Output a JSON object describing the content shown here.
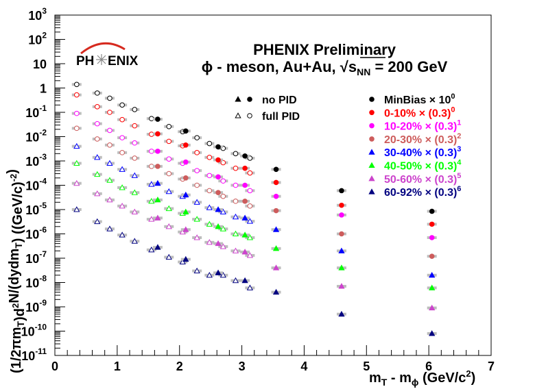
{
  "chart_data": {
    "type": "scatter",
    "title": "PHENIX Preliminary",
    "subtitle_prefix": "ϕ - meson, Au+Au, ",
    "subtitle_sqrt_symbol": "√",
    "subtitle_s": "s",
    "subtitle_s_sub": "NN",
    "subtitle_suffix": " = 200 GeV",
    "logo_text_left": "PH",
    "logo_text_right": "ENIX",
    "xlabel_main": "m",
    "xlabel_sub_T": "T",
    "xlabel_mid": " - m",
    "xlabel_sub_phi": "ϕ",
    "xlabel_unit": " (GeV/c",
    "xlabel_unit_sup": "2",
    "xlabel_end": ")",
    "ylabel_parts": [
      {
        "t": "(1/2πm"
      },
      {
        "t": "T",
        "sub": true
      },
      {
        "t": ")d"
      },
      {
        "t": "2",
        "sup": true
      },
      {
        "t": "N/(dydm"
      },
      {
        "t": "T",
        "sub": true
      },
      {
        "t": ") ((GeV/c)"
      },
      {
        "t": "-2",
        "sup": true
      },
      {
        "t": ")"
      }
    ],
    "x_range": [
      0,
      7
    ],
    "y_log": true,
    "y_range_exp": [
      -11,
      3
    ],
    "x_ticks": [
      "0",
      "1",
      "2",
      "3",
      "4",
      "5",
      "6",
      "7"
    ],
    "y_ticks": [
      {
        "exp": -11,
        "label": "10",
        "sup": "-11"
      },
      {
        "exp": -10,
        "label": "10",
        "sup": "-10"
      },
      {
        "exp": -9,
        "label": "10",
        "sup": "-9"
      },
      {
        "exp": -8,
        "label": "10",
        "sup": "-8"
      },
      {
        "exp": -7,
        "label": "10",
        "sup": "-7"
      },
      {
        "exp": -6,
        "label": "10",
        "sup": "-6"
      },
      {
        "exp": -5,
        "label": "10",
        "sup": "-5"
      },
      {
        "exp": -4,
        "label": "10",
        "sup": "-4"
      },
      {
        "exp": -3,
        "label": "10",
        "sup": "-3"
      },
      {
        "exp": -2,
        "label": "10",
        "sup": "-2"
      },
      {
        "exp": -1,
        "label": "10",
        "sup": "-1"
      },
      {
        "exp": 0,
        "label": "1",
        "sup": ""
      },
      {
        "exp": 1,
        "label": "10",
        "sup": ""
      },
      {
        "exp": 2,
        "label": "10",
        "sup": "2"
      },
      {
        "exp": 3,
        "label": "10",
        "sup": "3"
      }
    ],
    "pid_legend": [
      {
        "label": "no PID",
        "filled": true
      },
      {
        "label": "full PID",
        "filled": false
      }
    ],
    "series": [
      {
        "name": "MinBias",
        "factor": "× 10",
        "factor_sup": "0",
        "marker": "circle",
        "color": "#000000",
        "fullpid_x": [
          0.35,
          0.68,
          0.88,
          1.08,
          1.28,
          1.55,
          1.83,
          2.05,
          2.28,
          2.48,
          2.7,
          2.9,
          3.13
        ],
        "fullpid_y": [
          1.4,
          0.62,
          0.38,
          0.2,
          0.13,
          0.055,
          0.026,
          0.016,
          0.009,
          0.0052,
          0.0033,
          0.002,
          0.0013
        ],
        "nopid_x": [
          1.65,
          2.1,
          2.62,
          3.05,
          3.55,
          4.6,
          6.05
        ],
        "nopid_y": [
          0.052,
          0.017,
          0.0038,
          0.0016,
          0.00045,
          6e-05,
          8.5e-06
        ]
      },
      {
        "name": "0-10%",
        "factor": "× (0.3)",
        "factor_sup": "0",
        "marker": "circle",
        "color": "#ff0000",
        "fullpid_x": [
          0.35,
          0.68,
          0.88,
          1.08,
          1.28,
          1.55,
          1.83,
          2.05,
          2.28,
          2.48,
          2.7,
          2.9,
          3.13
        ],
        "fullpid_y": [
          0.52,
          0.17,
          0.1,
          0.05,
          0.028,
          0.0125,
          0.0064,
          0.0042,
          0.0022,
          0.0014,
          0.00085,
          0.0005,
          0.00032
        ],
        "nopid_x": [
          1.65,
          2.1,
          2.62,
          3.05,
          3.55,
          4.6,
          6.05
        ],
        "nopid_y": [
          0.013,
          0.0045,
          0.0011,
          0.0005,
          0.00013,
          1.5e-05,
          2.5e-06
        ]
      },
      {
        "name": "10-20%",
        "factor": "× (0.3)",
        "factor_sup": "1",
        "marker": "circle",
        "color": "#ff00ff",
        "fullpid_x": [
          0.35,
          0.68,
          0.88,
          1.08,
          1.28,
          1.55,
          1.83,
          2.05,
          2.28,
          2.48,
          2.7,
          2.9,
          3.13
        ],
        "fullpid_y": [
          0.09,
          0.034,
          0.018,
          0.009,
          0.0055,
          0.0025,
          0.0012,
          0.0008,
          0.0004,
          0.00025,
          0.00015,
          0.0001,
          6e-05
        ],
        "nopid_x": [
          1.65,
          2.1,
          2.62,
          3.05,
          3.55,
          4.6,
          6.05
        ],
        "nopid_y": [
          0.0025,
          0.0009,
          0.00022,
          0.0001,
          3.5e-05,
          6e-06,
          7e-07
        ]
      },
      {
        "name": "20-30%",
        "factor": "× (0.3)",
        "factor_sup": "2",
        "marker": "circle",
        "color": "#cd5c5c",
        "fullpid_x": [
          0.35,
          0.68,
          0.88,
          1.08,
          1.28,
          1.55,
          1.83,
          2.05,
          2.28,
          2.48,
          2.7,
          2.9,
          3.13
        ],
        "fullpid_y": [
          0.022,
          0.008,
          0.0045,
          0.0022,
          0.0013,
          0.0006,
          0.0003,
          0.00018,
          0.0001,
          6e-05,
          3.5e-05,
          2.2e-05,
          1.4e-05
        ],
        "nopid_x": [
          1.65,
          2.1,
          2.62,
          3.05,
          3.55,
          4.6,
          6.05
        ],
        "nopid_y": [
          0.0006,
          0.0002,
          5e-05,
          2.2e-05,
          9e-06,
          1e-06,
          1.2e-07
        ]
      },
      {
        "name": "30-40%",
        "factor": "× (0.3)",
        "factor_sup": "3",
        "marker": "triangle",
        "color": "#0000ff",
        "fullpid_x": [
          0.35,
          0.68,
          0.88,
          1.08,
          1.28,
          1.55,
          1.83,
          2.05,
          2.28,
          2.48,
          2.7,
          2.9,
          3.13
        ],
        "fullpid_y": [
          0.004,
          0.0014,
          0.0008,
          0.00045,
          0.00025,
          0.00011,
          5.5e-05,
          3.5e-05,
          2e-05,
          1.2e-05,
          8e-06,
          5e-06,
          3.3e-06
        ],
        "nopid_x": [
          1.65,
          2.1,
          2.62,
          3.05,
          3.55,
          4.6,
          6.05
        ],
        "nopid_y": [
          0.00012,
          4e-05,
          1e-05,
          4.5e-06,
          1.5e-06,
          2e-07,
          2e-08
        ]
      },
      {
        "name": "40-50%",
        "factor": "× (0.3)",
        "factor_sup": "4",
        "marker": "triangle",
        "color": "#00ff00",
        "fullpid_x": [
          0.35,
          0.68,
          0.88,
          1.08,
          1.28,
          1.55,
          1.83,
          2.05,
          2.28,
          2.48,
          2.7,
          2.9,
          3.13
        ],
        "fullpid_y": [
          0.0008,
          0.00028,
          0.00016,
          8e-05,
          5e-05,
          2.2e-05,
          1.1e-05,
          7e-06,
          4e-06,
          2.5e-06,
          1.6e-06,
          1e-06,
          7e-07
        ],
        "nopid_x": [
          1.65,
          2.1,
          2.62,
          3.05,
          3.55,
          4.6,
          6.05
        ],
        "nopid_y": [
          2.5e-05,
          8e-06,
          2e-06,
          9e-07,
          2.5e-07,
          4e-08,
          6e-09
        ]
      },
      {
        "name": "50-60%",
        "factor": "× (0.3)",
        "factor_sup": "5",
        "marker": "triangle",
        "color": "#cc44cc",
        "fullpid_x": [
          0.35,
          0.68,
          0.88,
          1.08,
          1.28,
          1.55,
          1.83,
          2.05,
          2.28,
          2.48,
          2.7,
          2.9,
          3.13
        ],
        "fullpid_y": [
          0.00012,
          4.5e-05,
          2.5e-05,
          1.4e-05,
          8e-06,
          4e-06,
          2e-06,
          1.2e-06,
          7e-07,
          4.5e-07,
          3e-07,
          2e-07,
          1.3e-07
        ],
        "nopid_x": [
          1.65,
          2.1,
          2.62,
          3.05,
          3.55,
          4.6,
          6.05
        ],
        "nopid_y": [
          4.5e-06,
          1.5e-06,
          4e-07,
          1.8e-07,
          4e-08,
          7e-09,
          9e-10
        ]
      },
      {
        "name": "60-92%",
        "factor": "× (0.3)",
        "factor_sup": "6",
        "marker": "triangle",
        "color": "#000080",
        "fullpid_x": [
          0.35,
          0.68,
          0.88,
          1.08,
          1.28,
          1.55,
          1.83,
          2.05,
          2.28,
          2.48,
          2.7,
          2.9,
          3.13
        ],
        "fullpid_y": [
          1e-05,
          3.2e-06,
          1.6e-06,
          9e-07,
          5e-07,
          2.2e-07,
          1.1e-07,
          7e-08,
          3e-08,
          2e-08,
          2e-08,
          1.2e-08,
          6e-09
        ],
        "nopid_x": [
          1.65,
          2.1,
          2.62,
          3.05,
          3.55,
          4.6,
          6.05
        ],
        "nopid_y": [
          2.8e-07,
          9e-08,
          2.5e-08,
          1.2e-08,
          4e-09,
          5e-10,
          8e-11
        ]
      }
    ]
  }
}
